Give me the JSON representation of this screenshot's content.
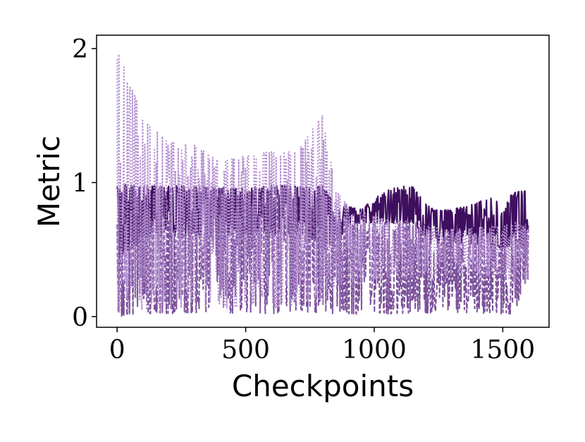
{
  "chart_data": {
    "type": "line",
    "title": "",
    "xlabel": "Checkpoints",
    "ylabel": "Metric",
    "xlim": [
      -80,
      1680
    ],
    "ylim": [
      -0.08,
      2.1
    ],
    "x_ticks": [
      0,
      500,
      1000,
      1500
    ],
    "y_ticks": [
      0,
      1,
      2
    ],
    "x_tick_labels": [
      "0",
      "500",
      "1000",
      "1500"
    ],
    "y_tick_labels": [
      "0",
      "1",
      "2"
    ],
    "grid": false,
    "legend": "none",
    "series": [
      {
        "style": "solid",
        "color": "#3f0f5f",
        "x": [
          0,
          100,
          200,
          300,
          400,
          500,
          600,
          700,
          800,
          850,
          900,
          950,
          1000,
          1050,
          1100,
          1150,
          1200,
          1250,
          1300,
          1350,
          1400,
          1450,
          1500,
          1550,
          1600
        ],
        "upper": [
          0.99,
          0.97,
          0.98,
          0.97,
          0.96,
          0.96,
          0.98,
          0.97,
          0.97,
          0.84,
          0.82,
          0.8,
          0.88,
          0.94,
          0.98,
          0.97,
          0.84,
          0.79,
          0.8,
          0.82,
          0.85,
          0.89,
          0.86,
          0.93,
          0.94
        ],
        "lower": [
          0.4,
          0.6,
          0.58,
          0.6,
          0.58,
          0.62,
          0.6,
          0.62,
          0.55,
          0.52,
          0.68,
          0.7,
          0.7,
          0.69,
          0.7,
          0.7,
          0.55,
          0.53,
          0.55,
          0.55,
          0.54,
          0.55,
          0.5,
          0.55,
          0.5
        ]
      },
      {
        "style": "dashed",
        "color": "#7b519a",
        "x": [
          0,
          100,
          200,
          300,
          400,
          500,
          600,
          700,
          800,
          850,
          900,
          950,
          1000,
          1050,
          1100,
          1150,
          1200,
          1250,
          1300,
          1350,
          1400,
          1450,
          1500,
          1550,
          1600
        ],
        "upper": [
          1.0,
          0.98,
          0.97,
          0.97,
          0.96,
          0.95,
          0.97,
          0.96,
          0.96,
          0.74,
          0.72,
          0.7,
          0.71,
          0.7,
          0.72,
          0.72,
          0.64,
          0.64,
          0.65,
          0.64,
          0.63,
          0.63,
          0.6,
          0.66,
          0.7
        ],
        "lower": [
          0.0,
          0.02,
          0.02,
          0.03,
          0.02,
          0.03,
          0.02,
          0.03,
          0.03,
          0.02,
          0.02,
          0.02,
          0.03,
          0.02,
          0.02,
          0.03,
          0.03,
          0.01,
          0.03,
          0.02,
          0.02,
          0.03,
          0.02,
          0.02,
          0.3
        ]
      },
      {
        "style": "dotted",
        "color": "#b48fd0",
        "x": [
          0,
          100,
          200,
          300,
          400,
          500,
          600,
          700,
          800,
          850,
          900,
          950,
          1000,
          1050,
          1100,
          1150,
          1200,
          1250,
          1300,
          1350,
          1400,
          1450,
          1500,
          1550,
          1600
        ],
        "upper": [
          2.0,
          1.49,
          1.3,
          1.28,
          1.16,
          1.2,
          1.23,
          1.23,
          1.51,
          0.95,
          0.82,
          0.78,
          0.75,
          0.72,
          0.72,
          0.7,
          0.68,
          0.66,
          0.66,
          0.66,
          0.66,
          0.67,
          0.68,
          0.7,
          0.64
        ],
        "lower": [
          0.0,
          0.05,
          0.05,
          0.08,
          0.05,
          0.08,
          0.06,
          0.08,
          0.1,
          0.2,
          0.25,
          0.25,
          0.28,
          0.28,
          0.28,
          0.28,
          0.3,
          0.3,
          0.3,
          0.32,
          0.3,
          0.3,
          0.3,
          0.25,
          0.24
        ]
      }
    ]
  }
}
